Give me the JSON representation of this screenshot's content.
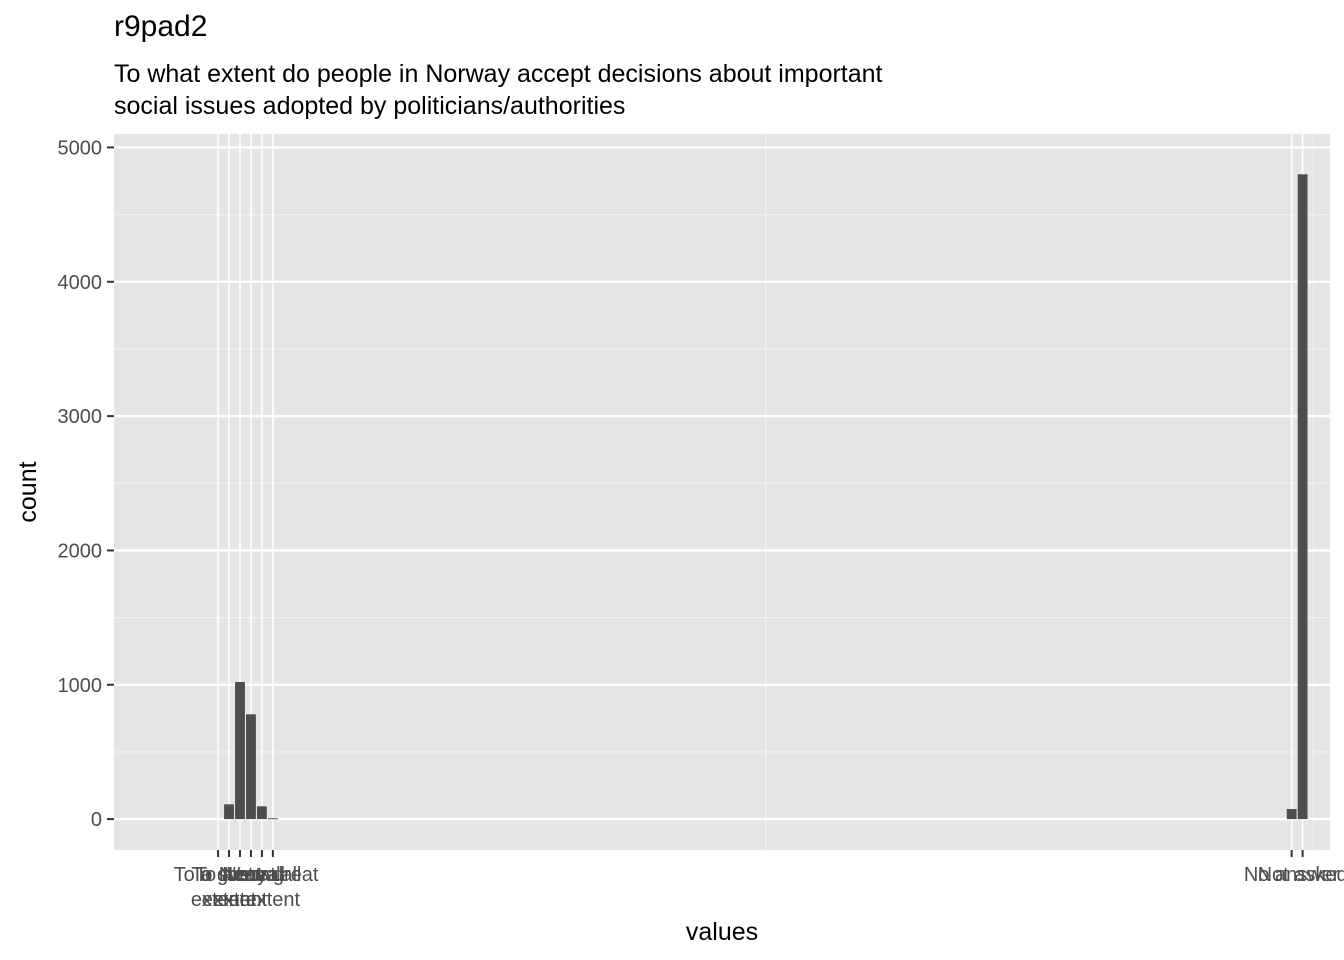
{
  "chart_data": {
    "type": "bar",
    "title": "r9pad2",
    "subtitle_lines": [
      "To what extent do people in Norway accept decisions about important",
      "social issues adopted by politicians/authorities"
    ],
    "xlabel": "values",
    "ylabel": "count",
    "xlim": [
      -9.5,
      101.5
    ],
    "ylim": [
      -230,
      5100
    ],
    "y_ticks": [
      0,
      1000,
      2000,
      3000,
      4000,
      5000
    ],
    "x_major_breaks": [
      0,
      50,
      100
    ],
    "grid": true,
    "legend": "none",
    "bar_color": "#4d4d4d",
    "panel_background": "#e5e5e5",
    "bars": [
      {
        "x": 1,
        "value": 110
      },
      {
        "x": 2,
        "value": 1020
      },
      {
        "x": 3,
        "value": 780
      },
      {
        "x": 4,
        "value": 95
      },
      {
        "x": 5,
        "value": 6
      },
      {
        "x": 98,
        "value": 75
      },
      {
        "x": 99,
        "value": 4800
      }
    ],
    "x_tick_labels": [
      {
        "x": 0,
        "lines": [
          "To a great",
          "extent"
        ]
      },
      {
        "x": 1,
        "lines": [
          "To some",
          "extent"
        ]
      },
      {
        "x": 2,
        "lines": [
          "To a small",
          "extent"
        ]
      },
      {
        "x": 3,
        "lines": [
          "Neutral"
        ]
      },
      {
        "x": 4,
        "lines": [
          "Not at all"
        ]
      },
      {
        "x": 5,
        "lines": [
          "Very great",
          "extent"
        ]
      },
      {
        "x": 98,
        "lines": [
          "No answer"
        ]
      },
      {
        "x": 99,
        "lines": [
          "Not asked"
        ]
      }
    ]
  }
}
